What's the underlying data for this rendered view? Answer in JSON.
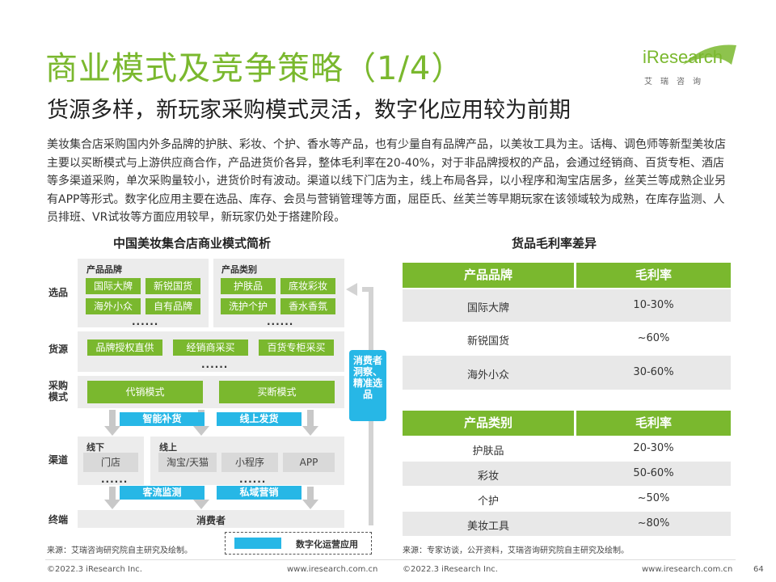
{
  "header": {
    "title": "商业模式及竞争策略（1/4）",
    "subtitle": "货源多样，新玩家采购模式灵活，数字化应用较为前期"
  },
  "logo": {
    "brand": "iResearch",
    "tagline": "艾瑞咨询"
  },
  "intro": "美妆集合店采购国内外多品牌的护肤、彩妆、个护、香水等产品，也有少量自有品牌产品，以美妆工具为主。话梅、调色师等新型美妆店主要以买断模式与上游供应商合作，产品进货价各异，整体毛利率在20-40%，对于非品牌授权的产品，会通过经销商、百货专柜、酒店等多渠道采购，单次采购量较小，进货价时有波动。渠道以线下门店为主，线上布局各异，以小程序和淘宝店居多，丝芙兰等成熟企业另有APP等形式。数字化应用主要在选品、库存、会员与营销管理等方面，屈臣氏、丝芙兰等早期玩家在该领域较为成熟，在库存监测、人员排班、VR试妆等方面应用较早，新玩家仍处于搭建阶段。",
  "diagram": {
    "title": "中国美妆集合店商业模式简析",
    "rows": {
      "selection": "选品",
      "sourcing": "货源",
      "procurement": "采购\n模式",
      "channel": "渠道",
      "terminal": "终端"
    },
    "brand_group": {
      "title": "产品品牌",
      "items": [
        "国际大牌",
        "新锐国货",
        "海外小众",
        "自有品牌"
      ],
      "more": "......"
    },
    "category_group": {
      "title": "产品类别",
      "items": [
        "护肤品",
        "底妆彩妆",
        "洗护个护",
        "香水香氛"
      ],
      "more": "......"
    },
    "sources": [
      "品牌授权直供",
      "经销商采买",
      "百货专柜采买"
    ],
    "sources_more": "......",
    "procurement": [
      "代销模式",
      "买断模式"
    ],
    "digital_top": [
      "智能补货",
      "线上发货"
    ],
    "offline": {
      "title": "线下",
      "items": [
        "门店"
      ],
      "more": "......"
    },
    "online": {
      "title": "线上",
      "items": [
        "淘宝/天猫",
        "小程序",
        "APP"
      ],
      "more": "......"
    },
    "digital_bottom": [
      "客流监测",
      "私域营销"
    ],
    "terminal_label": "消费者",
    "feedback": "消费者洞察、精准选品",
    "legend": "数字化运营应用",
    "source": "来源：艾瑞咨询研究院自主研究及绘制。"
  },
  "margin_section": {
    "title": "货品毛利率差异",
    "brand_table": {
      "headers": [
        "产品品牌",
        "毛利率"
      ],
      "rows": [
        [
          "国际大牌",
          "10-30%"
        ],
        [
          "新锐国货",
          "~60%"
        ],
        [
          "海外小众",
          "30-60%"
        ]
      ]
    },
    "category_table": {
      "headers": [
        "产品类别",
        "毛利率"
      ],
      "rows": [
        [
          "护肤品",
          "20-30%"
        ],
        [
          "彩妆",
          "50-60%"
        ],
        [
          "个护",
          "~50%"
        ],
        [
          "美妆工具",
          "~80%"
        ]
      ]
    },
    "source": "来源：专家访谈，公开资料，艾瑞咨询研究院自主研究及绘制。"
  },
  "footer": {
    "copyright_left": "©2022.3 iResearch Inc.",
    "url_left": "www.iresearch.com.cn",
    "copyright_right": "©2022.3 iResearch Inc.",
    "url_right": "www.iresearch.com.cn",
    "page_number": "64"
  },
  "colors": {
    "accent": "#7ab82e",
    "digital": "#27b7e6",
    "band": "#ececec"
  }
}
